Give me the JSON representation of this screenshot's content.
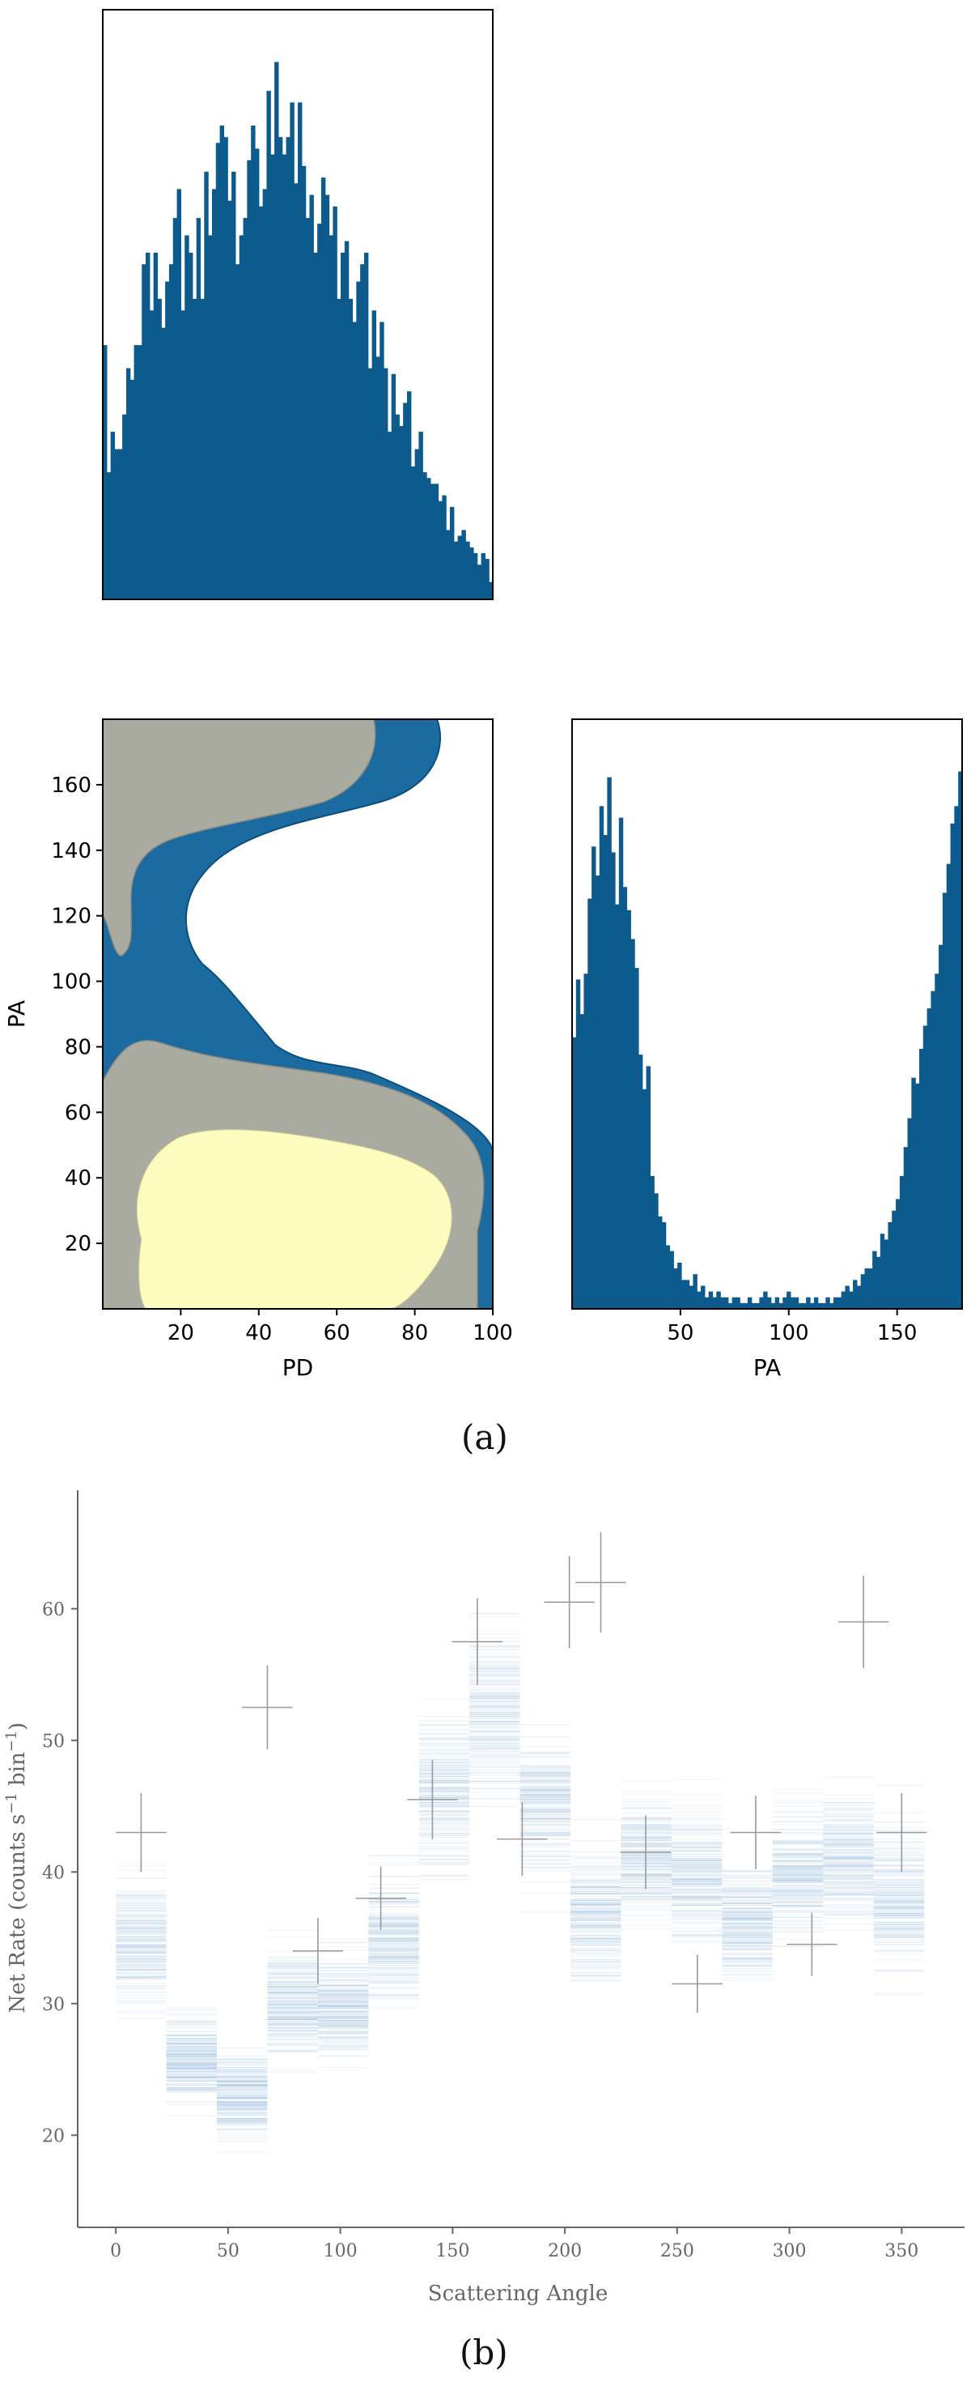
{
  "colors": {
    "hist_fill": "#0d5a8c",
    "hist_edge": "#0a4f7c",
    "contour_outer": "#1b6aa0",
    "contour_mid": "#a9aba1",
    "contour_inner": "#fdfcbe",
    "line_blue": "#3a80b8",
    "error_bar": "#999999",
    "frame": "#000000",
    "axis_gray": "#666666"
  },
  "captions": {
    "a": "(a)",
    "b": "(b)"
  },
  "chart_data": [
    {
      "id": "pd_histogram",
      "type": "bar",
      "xlim": [
        0,
        100
      ],
      "bins": 100,
      "values": [
        0.44,
        0.22,
        0.29,
        0.26,
        0.26,
        0.32,
        0.4,
        0.38,
        0.44,
        0.44,
        0.58,
        0.6,
        0.5,
        0.6,
        0.52,
        0.47,
        0.55,
        0.58,
        0.66,
        0.71,
        0.5,
        0.63,
        0.6,
        0.52,
        0.66,
        0.52,
        0.74,
        0.63,
        0.71,
        0.79,
        0.82,
        0.8,
        0.69,
        0.74,
        0.58,
        0.63,
        0.66,
        0.76,
        0.82,
        0.78,
        0.68,
        0.71,
        0.88,
        0.77,
        0.93,
        0.8,
        0.77,
        0.8,
        0.86,
        0.72,
        0.86,
        0.75,
        0.66,
        0.7,
        0.6,
        0.65,
        0.73,
        0.7,
        0.63,
        0.68,
        0.52,
        0.6,
        0.62,
        0.52,
        0.48,
        0.55,
        0.58,
        0.6,
        0.4,
        0.5,
        0.42,
        0.48,
        0.4,
        0.29,
        0.39,
        0.32,
        0.3,
        0.34,
        0.36,
        0.23,
        0.26,
        0.29,
        0.22,
        0.21,
        0.2,
        0.2,
        0.17,
        0.18,
        0.12,
        0.16,
        0.1,
        0.11,
        0.12,
        0.1,
        0.09,
        0.08,
        0.06,
        0.08,
        0.07,
        0.03
      ],
      "axes_visible": false
    },
    {
      "id": "pd_pa_contour",
      "type": "contour",
      "xlabel": "PD",
      "ylabel": "PA",
      "xlim": [
        0,
        100
      ],
      "ylim": [
        0,
        180
      ],
      "xticks": [
        20,
        40,
        60,
        80,
        100
      ],
      "yticks": [
        20,
        40,
        60,
        80,
        100,
        120,
        140,
        160
      ],
      "levels": [
        "outer",
        "middle",
        "inner"
      ]
    },
    {
      "id": "pa_histogram",
      "type": "bar",
      "xlabel": "PA",
      "xlim": [
        0,
        180
      ],
      "xticks": [
        50,
        100,
        150
      ],
      "bins": 100,
      "values": [
        0.47,
        0.57,
        0.51,
        0.58,
        0.71,
        0.8,
        0.75,
        0.87,
        0.82,
        0.92,
        0.79,
        0.7,
        0.85,
        0.73,
        0.69,
        0.64,
        0.59,
        0.44,
        0.38,
        0.42,
        0.23,
        0.2,
        0.16,
        0.15,
        0.11,
        0.1,
        0.07,
        0.08,
        0.05,
        0.05,
        0.04,
        0.06,
        0.03,
        0.04,
        0.02,
        0.03,
        0.02,
        0.03,
        0.02,
        0.02,
        0.01,
        0.02,
        0.02,
        0.01,
        0.01,
        0.02,
        0.01,
        0.01,
        0.02,
        0.03,
        0.02,
        0.01,
        0.02,
        0.01,
        0.02,
        0.03,
        0.02,
        0.02,
        0.01,
        0.01,
        0.02,
        0.01,
        0.02,
        0.01,
        0.01,
        0.02,
        0.01,
        0.02,
        0.02,
        0.03,
        0.04,
        0.03,
        0.05,
        0.04,
        0.06,
        0.07,
        0.07,
        0.1,
        0.09,
        0.13,
        0.12,
        0.15,
        0.17,
        0.19,
        0.23,
        0.28,
        0.33,
        0.4,
        0.39,
        0.45,
        0.49,
        0.52,
        0.55,
        0.58,
        0.63,
        0.72,
        0.77,
        0.84,
        0.87,
        0.93
      ],
      "ymax": 2.0
    },
    {
      "id": "modulation_curve",
      "type": "line",
      "xlabel": "Scattering Angle",
      "ylabel": "Net Rate (counts s",
      "ylabel_sup1": "−1",
      "ylabel_mid": " bin",
      "ylabel_sup2": "−1",
      "ylabel_end": ")",
      "xlim": [
        -17,
        378
      ],
      "ylim": [
        13,
        69
      ],
      "xticks": [
        0,
        50,
        100,
        150,
        200,
        250,
        300,
        350
      ],
      "yticks": [
        20,
        30,
        40,
        50,
        60
      ],
      "bin_edges": [
        0,
        22.5,
        45,
        67.5,
        90,
        112.5,
        135,
        157.5,
        180,
        202.5,
        225,
        247.5,
        270,
        292.5,
        315,
        337.5,
        360
      ],
      "band_centers": [
        35,
        26,
        23,
        30,
        30,
        35,
        46,
        52,
        45,
        37,
        41,
        40,
        36,
        40,
        41,
        38
      ],
      "band_spreads": [
        6,
        4,
        4,
        5,
        5,
        6,
        7,
        8,
        7,
        6,
        6,
        6,
        5,
        6,
        6,
        7
      ],
      "points": [
        {
          "x": 11.25,
          "y": 43.0,
          "xerr": 11.25,
          "yerr": 3.0
        },
        {
          "x": 67.5,
          "y": 52.5,
          "xerr": 11.25,
          "yerr": 3.2
        },
        {
          "x": 90.0,
          "y": 34.0,
          "xerr": 11.25,
          "yerr": 2.5
        },
        {
          "x": 118.0,
          "y": 38.0,
          "xerr": 11.25,
          "yerr": 2.4
        },
        {
          "x": 141.0,
          "y": 45.5,
          "xerr": 11.25,
          "yerr": 3.0
        },
        {
          "x": 161.0,
          "y": 57.5,
          "xerr": 11.25,
          "yerr": 3.3
        },
        {
          "x": 181.0,
          "y": 42.5,
          "xerr": 11.25,
          "yerr": 2.8
        },
        {
          "x": 202.0,
          "y": 60.5,
          "xerr": 11.25,
          "yerr": 3.5
        },
        {
          "x": 216.0,
          "y": 62.0,
          "xerr": 11.25,
          "yerr": 3.8
        },
        {
          "x": 236.0,
          "y": 41.5,
          "xerr": 11.25,
          "yerr": 2.8
        },
        {
          "x": 259.0,
          "y": 31.5,
          "xerr": 11.25,
          "yerr": 2.2
        },
        {
          "x": 285.0,
          "y": 43.0,
          "xerr": 11.25,
          "yerr": 2.8
        },
        {
          "x": 310.0,
          "y": 34.5,
          "xerr": 11.25,
          "yerr": 2.4
        },
        {
          "x": 333.0,
          "y": 59.0,
          "xerr": 11.25,
          "yerr": 3.5
        },
        {
          "x": 350.0,
          "y": 43.0,
          "xerr": 11.25,
          "yerr": 3.0
        }
      ]
    }
  ]
}
